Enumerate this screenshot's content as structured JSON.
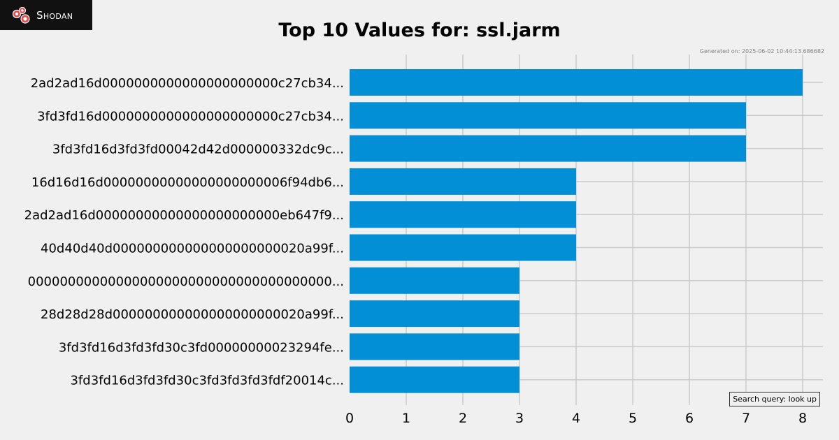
{
  "brand": {
    "name": "Shodan",
    "logo_icon": "shodan-logo-icon"
  },
  "chart_title": "Top 10 Values for: ssl.jarm",
  "generated_text": "Generated on: 2025-06-02 10:44:13.686682",
  "search_query_text": "Search query: look up",
  "colors": {
    "bar": "#038fd6",
    "background": "#f0f0f0",
    "grid": "#cbcbcb"
  },
  "chart_data": {
    "type": "bar",
    "orientation": "horizontal",
    "title": "Top 10 Values for: ssl.jarm",
    "xlabel": "",
    "ylabel": "",
    "xlim": [
      0,
      8.4
    ],
    "xticks": [
      0,
      1,
      2,
      3,
      4,
      5,
      6,
      7,
      8
    ],
    "grid": true,
    "categories": [
      "2ad2ad16d0000000000000000000000c27cb34...",
      "3fd3fd16d0000000000000000000000c27cb34...",
      "3fd3fd16d3fd3fd00042d42d000000332dc9c...",
      "16d16d16d00000000000000000000006f94db6...",
      "2ad2ad16d00000000000000000000000eb647f9...",
      "40d40d40d000000000000000000000020a99f...",
      "00000000000000000000000000000000000000...",
      "28d28d28d000000000000000000000020a99f...",
      "3fd3fd16d3fd3fd30c3fd00000000023294fe...",
      "3fd3fd16d3fd3fd30c3fd3fd3fd3fdf20014c..."
    ],
    "values": [
      8,
      7,
      7,
      4,
      4,
      4,
      3,
      3,
      3,
      3
    ]
  }
}
